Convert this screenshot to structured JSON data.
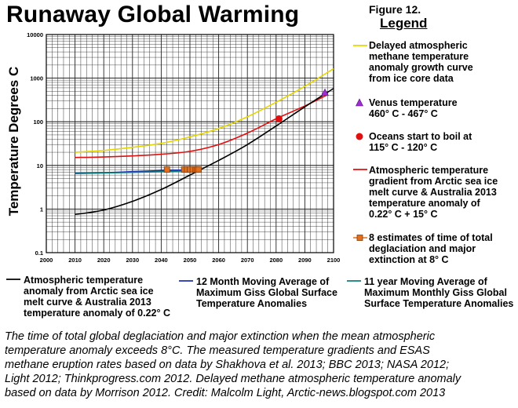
{
  "title": "Runaway Global Warming",
  "figure_label": "Figure 12.",
  "legend_heading": "Legend",
  "chart_data": {
    "type": "line",
    "title": "Runaway Global Warming",
    "xlabel": "",
    "ylabel": "Temperature Degrees C",
    "xlim": [
      2000,
      2100
    ],
    "ylim": [
      0.1,
      10000
    ],
    "yscale": "log",
    "grid": true,
    "x_ticks": [
      "2000",
      "2010",
      "2020",
      "2030",
      "2040",
      "2050",
      "2060",
      "2070",
      "2080",
      "2090",
      "2100"
    ],
    "y_ticks": [
      "0.1",
      "1",
      "10",
      "100",
      "1000",
      "10000"
    ],
    "series": [
      {
        "name": "Delayed atmospheric methane temperature anomaly growth curve from ice core data",
        "color": "#e6d600",
        "x": [
          2010,
          2020,
          2030,
          2040,
          2050,
          2060,
          2070,
          2080,
          2090,
          2100
        ],
        "y": [
          20,
          22,
          26,
          32,
          45,
          70,
          130,
          280,
          650,
          1650
        ]
      },
      {
        "name": "Atmospheric temperature gradient from Arctic sea ice melt curve & Australia 2013 temperature anomaly of 0.22° C + 15° C",
        "color": "#e01010",
        "x": [
          2010,
          2020,
          2030,
          2040,
          2050,
          2060,
          2070,
          2080,
          2090,
          2098
        ],
        "y": [
          15.2,
          15.6,
          16.5,
          18,
          21,
          30,
          55,
          117,
          230,
          420
        ]
      },
      {
        "name": "Atmospheric temperature anomaly from Arctic sea ice melt curve & Australia 2013 temperature anomaly of 0.22° C",
        "color": "#000000",
        "x": [
          2010,
          2020,
          2030,
          2040,
          2050,
          2060,
          2070,
          2080,
          2090,
          2100
        ],
        "y": [
          0.75,
          0.95,
          1.5,
          2.8,
          6,
          13,
          30,
          80,
          220,
          580
        ]
      },
      {
        "name": "12 Month Moving Average of Maximum Giss Global Surface Temperature Anomalies",
        "color": "#1c2fb5",
        "x": [
          2010,
          2020,
          2030,
          2040,
          2050,
          2053
        ],
        "y": [
          6.6,
          6.8,
          7.2,
          7.6,
          7.9,
          8.0
        ]
      },
      {
        "name": "11 year Moving Average of Maximum Monthly Giss Global Surface Temperature Anomalies",
        "color": "#0f7d7d",
        "x": [
          2010,
          2030,
          2050
        ],
        "y": [
          6.5,
          6.9,
          7.5
        ]
      }
    ],
    "markers": [
      {
        "name": "Venus temperature",
        "label": "460° C - 467° C",
        "shape": "triangle",
        "color": "#9b2fd1",
        "x": 2097,
        "y": 460
      },
      {
        "name": "Oceans start to boil",
        "label": "115° C - 120° C",
        "shape": "circle",
        "color": "#e01010",
        "x": 2081,
        "y": 117
      },
      {
        "name": "8 estimates of time of total deglaciation and major extinction",
        "label": "8° C",
        "shape": "square",
        "color": "#e07020",
        "points": [
          {
            "x": 2042,
            "y": 8
          },
          {
            "x": 2048,
            "y": 8
          },
          {
            "x": 2049,
            "y": 8
          },
          {
            "x": 2050,
            "y": 8
          },
          {
            "x": 2051,
            "y": 8
          },
          {
            "x": 2052,
            "y": 8
          },
          {
            "x": 2052.5,
            "y": 8
          },
          {
            "x": 2053,
            "y": 8
          }
        ]
      }
    ]
  },
  "legend": {
    "methane_line1": "Delayed atmospheric",
    "methane_line2": "methane temperature",
    "methane_line3": "anomaly growth curve",
    "methane_line4": "from ice core data",
    "venus_line1": "Venus temperature",
    "venus_line2": "460° C - 467° C",
    "oceans_line1": "Oceans start to boil at",
    "oceans_line2": "115° C - 120° C",
    "red_line1": "Atmospheric temperature",
    "red_line2": "gradient from Arctic sea ice",
    "red_line3": "melt curve & Australia 2013",
    "red_line4": "temperature anomaly of",
    "red_line5": "0.22° C + 15° C",
    "est_line1": "8 estimates of time of total",
    "est_line2": "deglaciation and major",
    "est_line3": "extinction at 8° C",
    "black_line1": "Atmospheric temperature",
    "black_line2": "anomaly from Arctic sea ice",
    "black_line3": "melt curve & Australia 2013",
    "black_line4": "temperature anomaly of 0.22° C",
    "blue_line1": "12 Month Moving Average of",
    "blue_line2": "Maximum Giss Global Surface",
    "blue_line3": "Temperature Anomalies",
    "teal_line1": "11 year Moving Average of",
    "teal_line2": "Maximum Monthly Giss Global",
    "teal_line3": "Surface Temperature Anomalies"
  },
  "caption": {
    "line1": "The time of total global deglaciation and major extinction when the mean atmospheric",
    "line2": "temperature anomaly exceeds 8°C.   The measured temperature gradients and ESAS",
    "line3": "methane eruption rates based on data by Shakhova et al. 2013; BBC 2013; NASA 2012;",
    "line4": "Light 2012; Thinkprogress.com 2012.  Delayed methane atmospheric temperature anomaly",
    "line5": "based on data by Morrison 2012.  Credit: Malcolm Light, Arctic-news.blogspot.com 2013"
  }
}
